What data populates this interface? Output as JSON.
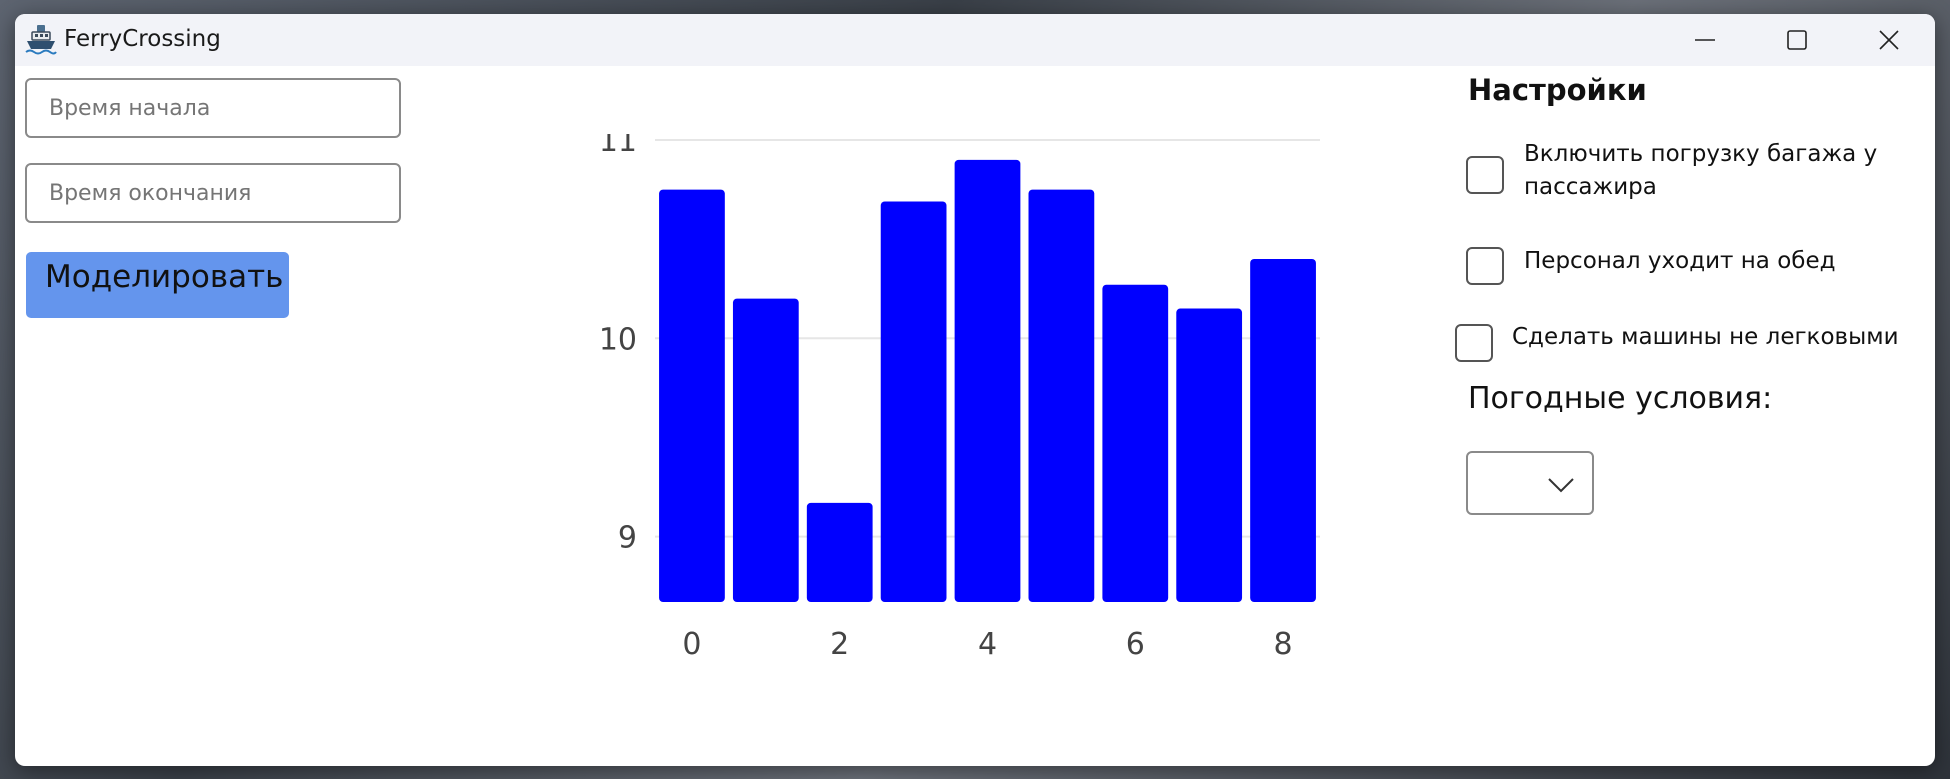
{
  "window": {
    "title": "FerryCrossing",
    "app_icon": "ship-icon"
  },
  "form": {
    "start_time": {
      "value": "",
      "placeholder": "Время начала"
    },
    "end_time": {
      "value": "",
      "placeholder": "Время окончания"
    },
    "simulate_label": "Моделировать"
  },
  "settings": {
    "title": "Настройки",
    "checkboxes": [
      {
        "label_line1": "Включить погрузку багажа у",
        "label_line2": "пассажира",
        "checked": false
      },
      {
        "label": "Персонал уходит на обед",
        "checked": false
      },
      {
        "label": "Сделать машины не легковыми",
        "checked": false
      }
    ],
    "weather_label": "Погодные условия:",
    "weather_value": ""
  },
  "chart_data": {
    "type": "bar",
    "x": [
      0,
      1,
      2,
      3,
      4,
      5,
      6,
      7,
      8
    ],
    "values": [
      10.75,
      10.2,
      9.17,
      10.69,
      10.9,
      10.75,
      10.27,
      10.15,
      10.4
    ],
    "xticks": [
      0,
      2,
      4,
      6,
      8
    ],
    "yticks": [
      9,
      10,
      11
    ],
    "ylim": [
      8.67,
      11.0
    ],
    "bar_color": "#0000ff",
    "grid": true
  }
}
